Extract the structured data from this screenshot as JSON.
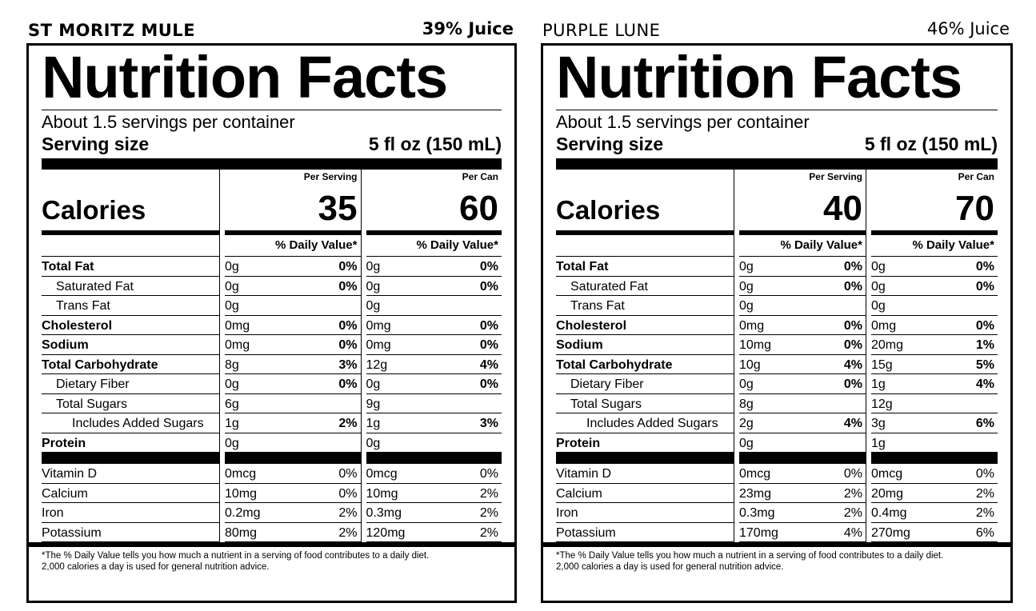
{
  "labels": [
    {
      "product": "ST MORITZ MULE",
      "juice": "39% Juice",
      "title": "Nutrition Facts",
      "servings": "About 1.5 servings per container",
      "serving_size_label": "Serving size",
      "serving_size_value": "5 fl oz (150 mL)",
      "per_serving_label": "Per Serving",
      "per_can_label": "Per Can",
      "calories_label": "Calories",
      "calories_serving": "35",
      "calories_can": "60",
      "dv_label": "% Daily Value*",
      "nutrients": [
        {
          "name": "Total Fat",
          "s_amt": "0g",
          "s_pct": "0%",
          "c_amt": "0g",
          "c_pct": "0%"
        },
        {
          "name": "Saturated Fat",
          "s_amt": "0g",
          "s_pct": "0%",
          "c_amt": "0g",
          "c_pct": "0%"
        },
        {
          "name": "Trans Fat",
          "s_amt": "0g",
          "s_pct": "",
          "c_amt": "0g",
          "c_pct": ""
        },
        {
          "name": "Cholesterol",
          "s_amt": "0mg",
          "s_pct": "0%",
          "c_amt": "0mg",
          "c_pct": "0%"
        },
        {
          "name": "Sodium",
          "s_amt": "0mg",
          "s_pct": "0%",
          "c_amt": "0mg",
          "c_pct": "0%"
        },
        {
          "name": "Total Carbohydrate",
          "s_amt": "8g",
          "s_pct": "3%",
          "c_amt": "12g",
          "c_pct": "4%"
        },
        {
          "name": "Dietary Fiber",
          "s_amt": "0g",
          "s_pct": "0%",
          "c_amt": "0g",
          "c_pct": "0%"
        },
        {
          "name": "Total Sugars",
          "s_amt": "6g",
          "s_pct": "",
          "c_amt": "9g",
          "c_pct": ""
        },
        {
          "name": "Includes Added Sugars",
          "s_amt": "1g",
          "s_pct": "2%",
          "c_amt": "1g",
          "c_pct": "3%"
        },
        {
          "name": "Protein",
          "s_amt": "0g",
          "s_pct": "",
          "c_amt": "0g",
          "c_pct": ""
        }
      ],
      "vitamins": [
        {
          "name": "Vitamin D",
          "s_amt": "0mcg",
          "s_pct": "0%",
          "c_amt": "0mcg",
          "c_pct": "0%"
        },
        {
          "name": "Calcium",
          "s_amt": "10mg",
          "s_pct": "0%",
          "c_amt": "10mg",
          "c_pct": "2%"
        },
        {
          "name": "Iron",
          "s_amt": "0.2mg",
          "s_pct": "2%",
          "c_amt": "0.3mg",
          "c_pct": "2%"
        },
        {
          "name": "Potassium",
          "s_amt": "80mg",
          "s_pct": "2%",
          "c_amt": "120mg",
          "c_pct": "2%"
        }
      ],
      "footnote_1": "*The % Daily Value tells you how much a nutrient in a serving of food contributes to a daily diet.",
      "footnote_2": "2,000 calories a day is used for general nutrition advice."
    },
    {
      "product": "PURPLE LUNE",
      "juice": "46% Juice",
      "title": "Nutrition Facts",
      "servings": "About 1.5 servings per container",
      "serving_size_label": "Serving size",
      "serving_size_value": "5 fl oz (150 mL)",
      "per_serving_label": "Per Serving",
      "per_can_label": "Per Can",
      "calories_label": "Calories",
      "calories_serving": "40",
      "calories_can": "70",
      "dv_label": "% Daily Value*",
      "nutrients": [
        {
          "name": "Total Fat",
          "s_amt": "0g",
          "s_pct": "0%",
          "c_amt": "0g",
          "c_pct": "0%"
        },
        {
          "name": "Saturated Fat",
          "s_amt": "0g",
          "s_pct": "0%",
          "c_amt": "0g",
          "c_pct": "0%"
        },
        {
          "name": "Trans Fat",
          "s_amt": "0g",
          "s_pct": "",
          "c_amt": "0g",
          "c_pct": ""
        },
        {
          "name": "Cholesterol",
          "s_amt": "0mg",
          "s_pct": "0%",
          "c_amt": "0mg",
          "c_pct": "0%"
        },
        {
          "name": "Sodium",
          "s_amt": "10mg",
          "s_pct": "0%",
          "c_amt": "20mg",
          "c_pct": "1%"
        },
        {
          "name": "Total Carbohydrate",
          "s_amt": "10g",
          "s_pct": "4%",
          "c_amt": "15g",
          "c_pct": "5%"
        },
        {
          "name": "Dietary Fiber",
          "s_amt": "0g",
          "s_pct": "0%",
          "c_amt": "1g",
          "c_pct": "4%"
        },
        {
          "name": "Total Sugars",
          "s_amt": "8g",
          "s_pct": "",
          "c_amt": "12g",
          "c_pct": ""
        },
        {
          "name": "Includes Added Sugars",
          "s_amt": "2g",
          "s_pct": "4%",
          "c_amt": "3g",
          "c_pct": "6%"
        },
        {
          "name": "Protein",
          "s_amt": "0g",
          "s_pct": "",
          "c_amt": "1g",
          "c_pct": ""
        }
      ],
      "vitamins": [
        {
          "name": "Vitamin D",
          "s_amt": "0mcg",
          "s_pct": "0%",
          "c_amt": "0mcg",
          "c_pct": "0%"
        },
        {
          "name": "Calcium",
          "s_amt": "23mg",
          "s_pct": "2%",
          "c_amt": "20mg",
          "c_pct": "2%"
        },
        {
          "name": "Iron",
          "s_amt": "0.3mg",
          "s_pct": "2%",
          "c_amt": "0.4mg",
          "c_pct": "2%"
        },
        {
          "name": "Potassium",
          "s_amt": "170mg",
          "s_pct": "4%",
          "c_amt": "270mg",
          "c_pct": "6%"
        }
      ],
      "footnote_1": "*The % Daily Value tells you how much a nutrient in a serving of food contributes to a daily diet.",
      "footnote_2": "2,000 calories a day is used for general nutrition advice."
    }
  ]
}
